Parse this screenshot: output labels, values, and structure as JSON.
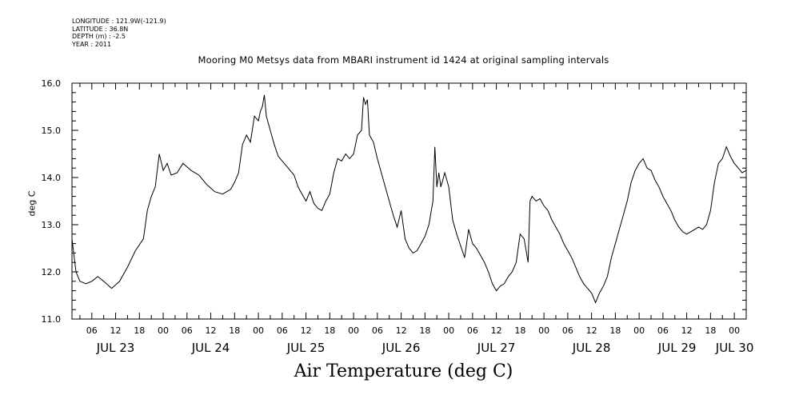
{
  "meta": {
    "longitude": "LONGITUDE : 121.9W(-121.9)",
    "latitude": "LATITUDE : 36.8N",
    "depth": "DEPTH (m) : -2.5",
    "year": "YEAR : 2011"
  },
  "chart_data": {
    "type": "line",
    "title": "Mooring M0 Metsys data from MBARI instrument id 1424 at original sampling intervals",
    "xlabel": "Air Temperature (deg C)",
    "ylabel": "deg C",
    "ylim": [
      11.0,
      16.0
    ],
    "y_ticks": [
      "11.0",
      "12.0",
      "13.0",
      "14.0",
      "15.0",
      "16.0"
    ],
    "x_range_hours": [
      "2011-07-23T01:00",
      "2011-07-30T03:00"
    ],
    "hour_ticks": [
      "06",
      "12",
      "18",
      "00",
      "06",
      "12",
      "18",
      "00",
      "06",
      "12",
      "18",
      "00",
      "06",
      "12",
      "18",
      "00",
      "06",
      "12",
      "18",
      "00",
      "06",
      "12",
      "18",
      "00",
      "06",
      "12",
      "18",
      "00"
    ],
    "day_labels": [
      "JUL 23",
      "JUL 24",
      "JUL 25",
      "JUL 26",
      "JUL 27",
      "JUL 28",
      "JUL 29",
      "JUL 30"
    ],
    "grid": false,
    "series": [
      {
        "color": "#000000",
        "points": [
          [
            "2011-07-23T01:00",
            12.7
          ],
          [
            "2011-07-23T02:00",
            12.0
          ],
          [
            "2011-07-23T03:00",
            11.8
          ],
          [
            "2011-07-23T04:30",
            11.75
          ],
          [
            "2011-07-23T06:00",
            11.8
          ],
          [
            "2011-07-23T07:30",
            11.9
          ],
          [
            "2011-07-23T09:00",
            11.8
          ],
          [
            "2011-07-23T11:00",
            11.65
          ],
          [
            "2011-07-23T13:00",
            11.8
          ],
          [
            "2011-07-23T15:00",
            12.1
          ],
          [
            "2011-07-23T17:00",
            12.45
          ],
          [
            "2011-07-23T19:00",
            12.7
          ],
          [
            "2011-07-23T20:00",
            13.3
          ],
          [
            "2011-07-23T21:00",
            13.6
          ],
          [
            "2011-07-23T22:00",
            13.8
          ],
          [
            "2011-07-23T23:00",
            14.5
          ],
          [
            "2011-07-24T00:00",
            14.15
          ],
          [
            "2011-07-24T01:00",
            14.3
          ],
          [
            "2011-07-24T02:00",
            14.05
          ],
          [
            "2011-07-24T03:30",
            14.1
          ],
          [
            "2011-07-24T05:00",
            14.3
          ],
          [
            "2011-07-24T07:00",
            14.15
          ],
          [
            "2011-07-24T09:00",
            14.05
          ],
          [
            "2011-07-24T11:00",
            13.85
          ],
          [
            "2011-07-24T13:00",
            13.7
          ],
          [
            "2011-07-24T15:00",
            13.65
          ],
          [
            "2011-07-24T17:00",
            13.75
          ],
          [
            "2011-07-24T18:00",
            13.9
          ],
          [
            "2011-07-24T19:00",
            14.1
          ],
          [
            "2011-07-24T20:00",
            14.7
          ],
          [
            "2011-07-24T21:00",
            14.9
          ],
          [
            "2011-07-24T22:00",
            14.75
          ],
          [
            "2011-07-24T23:00",
            15.3
          ],
          [
            "2011-07-25T00:00",
            15.2
          ],
          [
            "2011-07-25T00:30",
            15.4
          ],
          [
            "2011-07-25T01:00",
            15.5
          ],
          [
            "2011-07-25T01:30",
            15.75
          ],
          [
            "2011-07-25T02:00",
            15.3
          ],
          [
            "2011-07-25T03:00",
            15.0
          ],
          [
            "2011-07-25T04:00",
            14.7
          ],
          [
            "2011-07-25T05:00",
            14.45
          ],
          [
            "2011-07-25T06:30",
            14.3
          ],
          [
            "2011-07-25T08:00",
            14.15
          ],
          [
            "2011-07-25T09:00",
            14.05
          ],
          [
            "2011-07-25T10:00",
            13.8
          ],
          [
            "2011-07-25T11:00",
            13.65
          ],
          [
            "2011-07-25T12:00",
            13.5
          ],
          [
            "2011-07-25T13:00",
            13.7
          ],
          [
            "2011-07-25T14:00",
            13.45
          ],
          [
            "2011-07-25T15:00",
            13.35
          ],
          [
            "2011-07-25T16:00",
            13.3
          ],
          [
            "2011-07-25T17:00",
            13.5
          ],
          [
            "2011-07-25T18:00",
            13.65
          ],
          [
            "2011-07-25T19:00",
            14.1
          ],
          [
            "2011-07-25T20:00",
            14.4
          ],
          [
            "2011-07-25T21:00",
            14.35
          ],
          [
            "2011-07-25T22:00",
            14.5
          ],
          [
            "2011-07-25T23:00",
            14.4
          ],
          [
            "2011-07-26T00:00",
            14.5
          ],
          [
            "2011-07-26T01:00",
            14.9
          ],
          [
            "2011-07-26T02:00",
            15.0
          ],
          [
            "2011-07-26T02:30",
            15.7
          ],
          [
            "2011-07-26T03:00",
            15.55
          ],
          [
            "2011-07-26T03:30",
            15.65
          ],
          [
            "2011-07-26T04:00",
            14.9
          ],
          [
            "2011-07-26T05:00",
            14.75
          ],
          [
            "2011-07-26T06:00",
            14.4
          ],
          [
            "2011-07-26T07:00",
            14.1
          ],
          [
            "2011-07-26T08:00",
            13.8
          ],
          [
            "2011-07-26T09:00",
            13.5
          ],
          [
            "2011-07-26T10:00",
            13.2
          ],
          [
            "2011-07-26T11:00",
            12.95
          ],
          [
            "2011-07-26T12:00",
            13.3
          ],
          [
            "2011-07-26T13:00",
            12.7
          ],
          [
            "2011-07-26T14:00",
            12.5
          ],
          [
            "2011-07-26T15:00",
            12.4
          ],
          [
            "2011-07-26T16:00",
            12.45
          ],
          [
            "2011-07-26T17:00",
            12.6
          ],
          [
            "2011-07-26T18:00",
            12.75
          ],
          [
            "2011-07-26T19:00",
            13.0
          ],
          [
            "2011-07-26T20:00",
            13.5
          ],
          [
            "2011-07-26T20:30",
            14.65
          ],
          [
            "2011-07-26T21:00",
            13.8
          ],
          [
            "2011-07-26T21:30",
            14.1
          ],
          [
            "2011-07-26T22:00",
            13.8
          ],
          [
            "2011-07-26T23:00",
            14.1
          ],
          [
            "2011-07-27T00:00",
            13.8
          ],
          [
            "2011-07-27T01:00",
            13.1
          ],
          [
            "2011-07-27T02:00",
            12.8
          ],
          [
            "2011-07-27T03:00",
            12.55
          ],
          [
            "2011-07-27T04:00",
            12.3
          ],
          [
            "2011-07-27T05:00",
            12.9
          ],
          [
            "2011-07-27T06:00",
            12.6
          ],
          [
            "2011-07-27T07:00",
            12.5
          ],
          [
            "2011-07-27T08:00",
            12.35
          ],
          [
            "2011-07-27T09:00",
            12.2
          ],
          [
            "2011-07-27T10:00",
            12.0
          ],
          [
            "2011-07-27T11:00",
            11.75
          ],
          [
            "2011-07-27T12:00",
            11.6
          ],
          [
            "2011-07-27T13:00",
            11.7
          ],
          [
            "2011-07-27T14:00",
            11.75
          ],
          [
            "2011-07-27T15:00",
            11.9
          ],
          [
            "2011-07-27T16:00",
            12.0
          ],
          [
            "2011-07-27T17:00",
            12.2
          ],
          [
            "2011-07-27T18:00",
            12.8
          ],
          [
            "2011-07-27T19:00",
            12.7
          ],
          [
            "2011-07-27T20:00",
            12.2
          ],
          [
            "2011-07-27T20:30",
            13.5
          ],
          [
            "2011-07-27T21:00",
            13.6
          ],
          [
            "2011-07-27T22:00",
            13.5
          ],
          [
            "2011-07-27T23:00",
            13.55
          ],
          [
            "2011-07-28T00:00",
            13.4
          ],
          [
            "2011-07-28T01:00",
            13.3
          ],
          [
            "2011-07-28T02:00",
            13.1
          ],
          [
            "2011-07-28T03:00",
            12.95
          ],
          [
            "2011-07-28T04:00",
            12.8
          ],
          [
            "2011-07-28T05:00",
            12.6
          ],
          [
            "2011-07-28T06:00",
            12.45
          ],
          [
            "2011-07-28T07:00",
            12.3
          ],
          [
            "2011-07-28T08:00",
            12.1
          ],
          [
            "2011-07-28T09:00",
            11.9
          ],
          [
            "2011-07-28T10:00",
            11.75
          ],
          [
            "2011-07-28T11:00",
            11.65
          ],
          [
            "2011-07-28T12:00",
            11.55
          ],
          [
            "2011-07-28T13:00",
            11.35
          ],
          [
            "2011-07-28T14:00",
            11.55
          ],
          [
            "2011-07-28T15:00",
            11.7
          ],
          [
            "2011-07-28T16:00",
            11.9
          ],
          [
            "2011-07-28T17:00",
            12.3
          ],
          [
            "2011-07-28T18:00",
            12.6
          ],
          [
            "2011-07-28T19:00",
            12.9
          ],
          [
            "2011-07-28T20:00",
            13.2
          ],
          [
            "2011-07-28T21:00",
            13.5
          ],
          [
            "2011-07-28T22:00",
            13.9
          ],
          [
            "2011-07-28T23:00",
            14.15
          ],
          [
            "2011-07-29T00:00",
            14.3
          ],
          [
            "2011-07-29T01:00",
            14.4
          ],
          [
            "2011-07-29T02:00",
            14.2
          ],
          [
            "2011-07-29T03:00",
            14.15
          ],
          [
            "2011-07-29T04:00",
            13.95
          ],
          [
            "2011-07-29T05:00",
            13.8
          ],
          [
            "2011-07-29T06:00",
            13.6
          ],
          [
            "2011-07-29T07:00",
            13.45
          ],
          [
            "2011-07-29T08:00",
            13.3
          ],
          [
            "2011-07-29T09:00",
            13.1
          ],
          [
            "2011-07-29T10:00",
            12.95
          ],
          [
            "2011-07-29T11:00",
            12.85
          ],
          [
            "2011-07-29T12:00",
            12.8
          ],
          [
            "2011-07-29T13:00",
            12.85
          ],
          [
            "2011-07-29T14:00",
            12.9
          ],
          [
            "2011-07-29T15:00",
            12.95
          ],
          [
            "2011-07-29T16:00",
            12.9
          ],
          [
            "2011-07-29T17:00",
            13.0
          ],
          [
            "2011-07-29T18:00",
            13.3
          ],
          [
            "2011-07-29T19:00",
            13.9
          ],
          [
            "2011-07-29T20:00",
            14.3
          ],
          [
            "2011-07-29T21:00",
            14.4
          ],
          [
            "2011-07-29T22:00",
            14.65
          ],
          [
            "2011-07-29T23:00",
            14.45
          ],
          [
            "2011-07-30T00:00",
            14.3
          ],
          [
            "2011-07-30T01:00",
            14.2
          ],
          [
            "2011-07-30T02:00",
            14.1
          ],
          [
            "2011-07-30T03:00",
            14.15
          ]
        ]
      }
    ]
  }
}
